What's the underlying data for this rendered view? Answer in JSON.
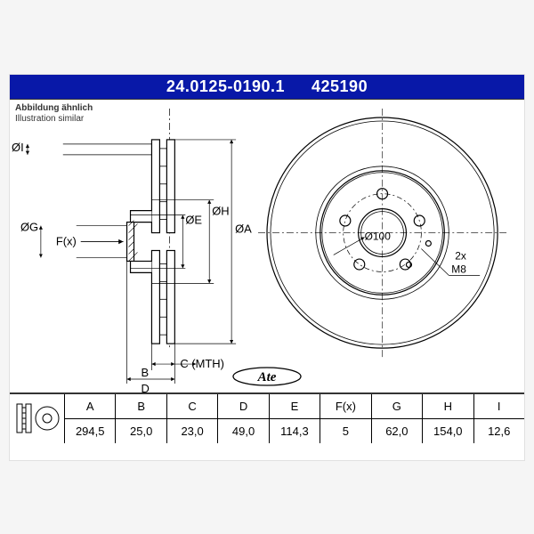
{
  "header": {
    "part_number": "24.0125-0190.1",
    "short_code": "425190",
    "bg_color": "#0818a8",
    "text_color": "#ffffff"
  },
  "caption": {
    "de": "Abbildung ähnlich",
    "en": "Illustration similar"
  },
  "front_view": {
    "bolt_circle_label": "Ø100",
    "thread_label": "M8",
    "thread_count_label": "2x",
    "bolt_count": 5,
    "outer_d": 294.5,
    "bolt_circle_d": 100,
    "center_bore_d": 62.0,
    "hat_d": 154.0
  },
  "side_view": {
    "dim_labels": [
      "ØI",
      "ØG",
      "ØE",
      "ØH",
      "ØA"
    ],
    "fx_label": "F(x)",
    "b_label": "B",
    "c_label": "C (MTH)",
    "d_label": "D"
  },
  "spec_table": {
    "columns": [
      "A",
      "B",
      "C",
      "D",
      "E",
      "F(x)",
      "G",
      "H",
      "I"
    ],
    "values": [
      "294,5",
      "25,0",
      "23,0",
      "49,0",
      "114,3",
      "5",
      "62,0",
      "154,0",
      "12,6"
    ]
  },
  "style": {
    "stroke_color": "#000000",
    "stroke_width": 1.2,
    "thin_stroke_width": 0.8,
    "bg": "#ffffff",
    "cell_font_size": 13
  }
}
